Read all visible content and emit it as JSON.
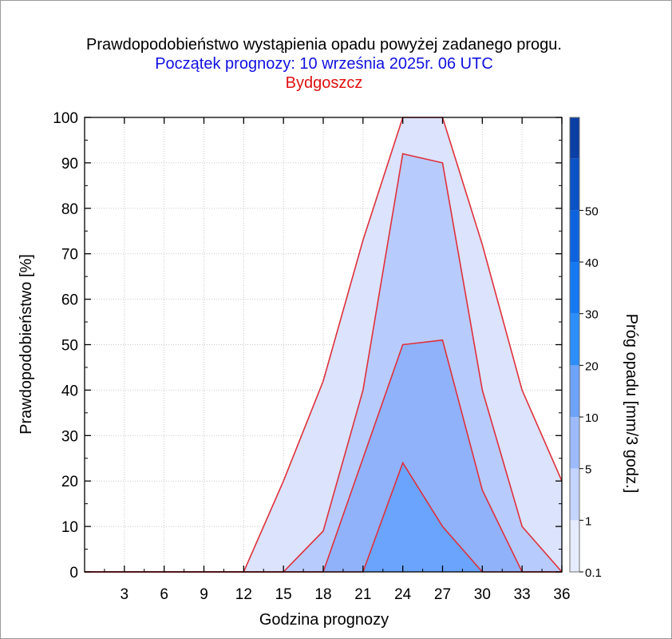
{
  "titles": {
    "main": "Prawdopodobieństwo wystąpienia opadu powyżej zadanego progu.",
    "forecast_start": "Początek prognozy: 10 września 2025r. 06 UTC",
    "location": "Bydgoszcz"
  },
  "colors": {
    "forecast_start": "#1010e0",
    "location": "#e01010",
    "outline": "#e0303a",
    "grid": "#c8c8c8"
  },
  "chart_data": {
    "type": "area",
    "title": "Prawdopodobieństwo wystąpienia opadu powyżej zadanego progu.",
    "xlabel": "Godzina prognozy",
    "ylabel": "Prawdopodobieństwo [%]",
    "xlim": [
      0,
      36
    ],
    "ylim": [
      0,
      100
    ],
    "x_ticks": [
      3,
      6,
      9,
      12,
      15,
      18,
      21,
      24,
      27,
      30,
      33,
      36
    ],
    "y_ticks": [
      0,
      10,
      20,
      30,
      40,
      50,
      60,
      70,
      80,
      90,
      100
    ],
    "grid": true,
    "x": [
      0,
      3,
      6,
      9,
      12,
      15,
      18,
      21,
      24,
      27,
      30,
      33,
      36
    ],
    "series": [
      {
        "threshold": 0.1,
        "color": "#dbe3fd",
        "values": [
          0,
          0,
          0,
          0,
          0,
          20,
          42,
          73,
          100,
          100,
          72,
          40,
          20
        ]
      },
      {
        "threshold": 1,
        "color": "#b8cbfd",
        "values": [
          0,
          0,
          0,
          0,
          0,
          0,
          9,
          40,
          92,
          90,
          40,
          10,
          0
        ]
      },
      {
        "threshold": 5,
        "color": "#8fb2fb",
        "values": [
          0,
          0,
          0,
          0,
          0,
          0,
          0,
          25,
          50,
          51,
          18,
          0,
          0
        ]
      },
      {
        "threshold": 10,
        "color": "#6aa4fc",
        "values": [
          0,
          0,
          0,
          0,
          0,
          0,
          0,
          0,
          24,
          10,
          0,
          0,
          0
        ]
      }
    ],
    "colorbar": {
      "label": "Próg opadu [mm/3 godz.]",
      "tick_labels": [
        "0.1",
        "1",
        "5",
        "10",
        "20",
        "30",
        "40",
        "50"
      ],
      "bands": [
        {
          "from": 0.1,
          "color": "#e6ecfe"
        },
        {
          "from": 1,
          "color": "#c4d4fd"
        },
        {
          "from": 5,
          "color": "#9dbbfc"
        },
        {
          "from": 10,
          "color": "#6ea3fa"
        },
        {
          "from": 20,
          "color": "#2d8ef9"
        },
        {
          "from": 30,
          "color": "#157af2"
        },
        {
          "from": 40,
          "color": "#0d63de"
        },
        {
          "from": 50,
          "color": "#0b52c6"
        },
        {
          "from": 55,
          "color": "#0a3fa6"
        }
      ]
    }
  }
}
